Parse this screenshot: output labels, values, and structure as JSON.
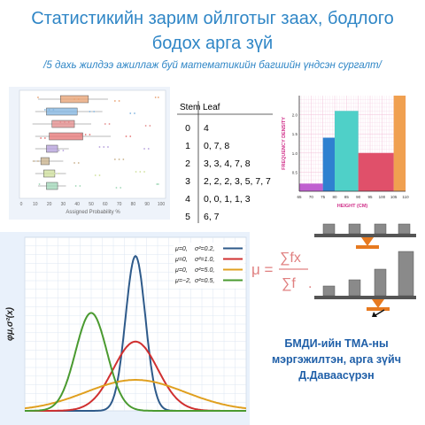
{
  "header": {
    "title_line1": "Статистикийн зарим ойлготыг заах, бодлого",
    "title_line2": "бодох арга зүй",
    "subtitle": "/5 дахь жилдээ ажиллаж буй математикийн багшийн үндсэн сургалт/"
  },
  "boxplot": {
    "xlabel": "Assigned Probability %",
    "ticks": [
      "0",
      "10",
      "20",
      "30",
      "40",
      "50",
      "60",
      "70",
      "80",
      "90",
      "100"
    ],
    "colors": [
      "#e8a070",
      "#7fb3e0",
      "#e38a8a",
      "#e57373",
      "#b39ddb",
      "#c8b08a",
      "#cfe09a",
      "#9ed6b5"
    ]
  },
  "stem_leaf": {
    "header_stem": "Stem",
    "header_leaf": "Leaf",
    "rows": [
      {
        "stem": "0",
        "leaf": "4"
      },
      {
        "stem": "1",
        "leaf": "0, 7, 8"
      },
      {
        "stem": "2",
        "leaf": "3, 3, 4, 7, 8"
      },
      {
        "stem": "3",
        "leaf": "2, 2, 2, 3, 5, 7, 7"
      },
      {
        "stem": "4",
        "leaf": "0, 0, 1, 1, 3"
      },
      {
        "stem": "5",
        "leaf": "6, 7"
      }
    ]
  },
  "histogram": {
    "ylabel": "FREQUENCY DENSITY",
    "xlabel": "HEIGHT (CM)",
    "yticks": [
      "2.0",
      "1.5",
      "1.0",
      "0.5"
    ],
    "xticks": [
      "65",
      "70",
      "75",
      "80",
      "85",
      "90",
      "95",
      "100",
      "105",
      "110"
    ],
    "bars": [
      {
        "from": 65,
        "to": 75,
        "value": 0.2,
        "color": "#c060d0"
      },
      {
        "from": 75,
        "to": 80,
        "value": 1.4,
        "color": "#2f80d0"
      },
      {
        "from": 80,
        "to": 90,
        "value": 2.1,
        "color": "#4fd0c8"
      },
      {
        "from": 90,
        "to": 105,
        "value": 1.0,
        "color": "#e0506a"
      },
      {
        "from": 105,
        "to": 110,
        "value": 2.5,
        "color": "#f0a050"
      }
    ]
  },
  "formula": {
    "mu": "μ =",
    "num": "∑fx",
    "den": "∑f",
    "dot": "."
  },
  "normal_chart": {
    "ylabel": "φμ,σ²(x)",
    "legend": [
      {
        "mu": "μ=0,",
        "s2": "σ²=0.2,",
        "color": "#2e5a8a"
      },
      {
        "mu": "μ=0,",
        "s2": "σ²=1.0,",
        "color": "#d03030"
      },
      {
        "mu": "μ=0,",
        "s2": "σ²=5.0,",
        "color": "#e0a020"
      },
      {
        "mu": "μ=−2,",
        "s2": "σ²=0.5,",
        "color": "#4a9a30"
      }
    ]
  },
  "author": {
    "line1": "БМДИ-ийн ТМА-ны",
    "line2": "мэргэжилтэн, арга зүйч",
    "line3": "Д.Даваасүрэн"
  }
}
